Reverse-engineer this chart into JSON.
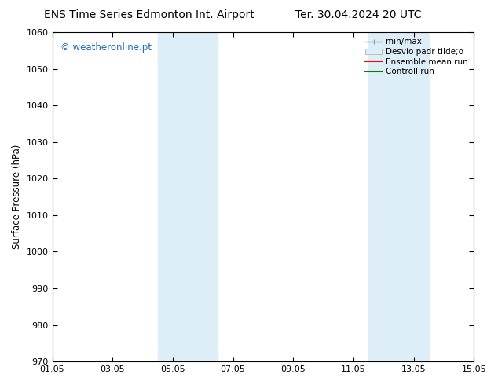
{
  "title_left": "ENS Time Series Edmonton Int. Airport",
  "title_right": "Ter. 30.04.2024 20 UTC",
  "ylabel": "Surface Pressure (hPa)",
  "xlabel_ticks": [
    "01.05",
    "03.05",
    "05.05",
    "07.05",
    "09.05",
    "11.05",
    "13.05",
    "15.05"
  ],
  "xlim": [
    0,
    14
  ],
  "ylim": [
    970,
    1060
  ],
  "yticks": [
    970,
    980,
    990,
    1000,
    1010,
    1020,
    1030,
    1040,
    1050,
    1060
  ],
  "xtick_positions": [
    0,
    2,
    4,
    6,
    8,
    10,
    12,
    14
  ],
  "shaded_bands": [
    {
      "x_start": 3.5,
      "x_end": 5.5
    },
    {
      "x_start": 10.5,
      "x_end": 12.5
    }
  ],
  "shade_color": "#ddeef8",
  "watermark": "© weatheronline.pt",
  "watermark_color": "#1a6dbf",
  "bg_color": "#ffffff",
  "plot_bg_color": "#ffffff",
  "border_color": "#000000",
  "legend_items": [
    {
      "label": "min/max",
      "type": "errorbar",
      "color": "#999999"
    },
    {
      "label": "Desvio padr tilde;o",
      "type": "patch",
      "color": "#ddeef8"
    },
    {
      "label": "Ensemble mean run",
      "type": "line",
      "color": "#ff0000",
      "lw": 1.5
    },
    {
      "label": "Controll run",
      "type": "line",
      "color": "#008000",
      "lw": 1.5
    }
  ],
  "title_fontsize": 10,
  "tick_fontsize": 8,
  "ylabel_fontsize": 8.5,
  "watermark_fontsize": 8.5
}
